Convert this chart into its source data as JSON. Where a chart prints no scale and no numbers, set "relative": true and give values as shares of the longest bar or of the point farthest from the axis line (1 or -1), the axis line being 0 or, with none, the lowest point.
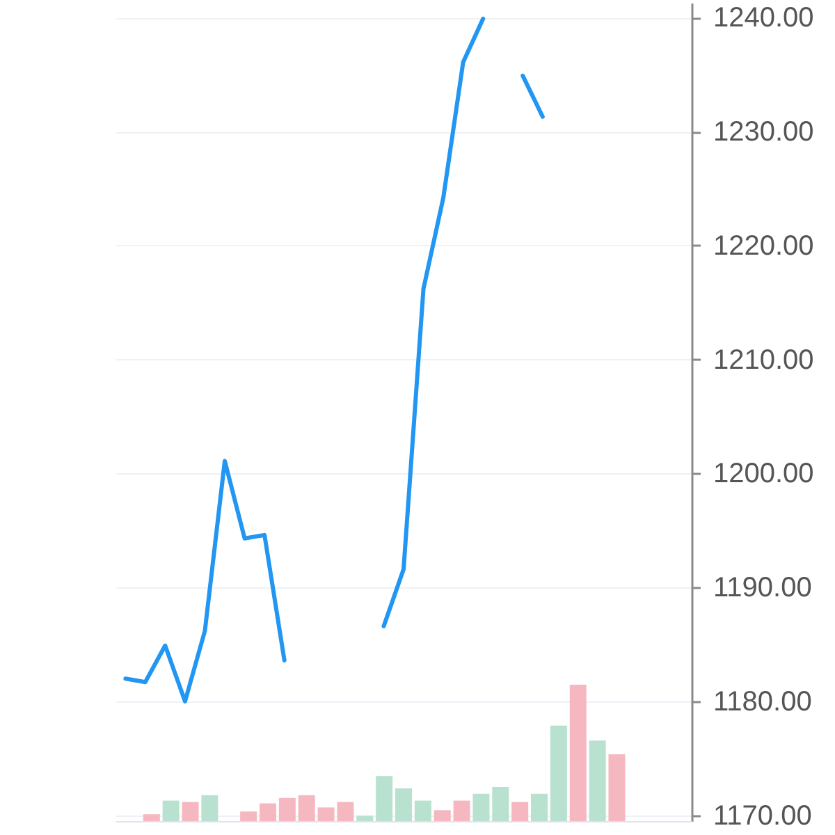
{
  "chart_data": [
    {
      "type": "line",
      "categories": [
        null,
        null,
        null,
        null,
        null,
        null,
        null,
        null,
        null,
        null,
        null,
        null,
        null,
        null,
        null,
        null,
        null,
        null,
        null,
        null,
        null,
        null,
        null,
        null,
        null,
        null,
        null,
        null,
        null
      ],
      "series": [
        {
          "color": "#2196f3",
          "values": [
            1182.0,
            1181.7,
            1184.9,
            1180.0,
            1186.2,
            1201.1,
            1194.3,
            1194.6,
            1183.6,
            null,
            null,
            null,
            null,
            1186.6,
            1191.6,
            1216.2,
            1224.2,
            1236.1,
            1239.9,
            null,
            1234.9,
            1231.3,
            null,
            null,
            null,
            null,
            null,
            null,
            null
          ]
        }
      ],
      "ylim": [
        1169.5,
        1241.3
      ],
      "yticks": [
        {
          "value": 1170,
          "label": "1170.00"
        },
        {
          "value": 1180,
          "label": "1180.00"
        },
        {
          "value": 1190,
          "label": "1190.00"
        },
        {
          "value": 1200,
          "label": "1200.00"
        },
        {
          "value": 1210,
          "label": "1210.00"
        },
        {
          "value": 1220,
          "label": "1220.00"
        },
        {
          "value": 1230,
          "label": "1230.00"
        },
        {
          "value": 1240,
          "label": "1240.00"
        }
      ],
      "grid": "y",
      "tick_labels": "y"
    },
    {
      "type": "bar",
      "relative": true,
      "categories": [
        null,
        null,
        null,
        null,
        null,
        null,
        null,
        null,
        null,
        null,
        null,
        null,
        null,
        null,
        null,
        null,
        null,
        null,
        null,
        null,
        null,
        null,
        null,
        null,
        null,
        null,
        null,
        null,
        null
      ],
      "values": [
        null,
        0.05,
        0.15,
        0.14,
        0.19,
        null,
        0.07,
        0.13,
        0.17,
        0.19,
        0.1,
        0.14,
        0.04,
        0.33,
        0.24,
        0.15,
        0.08,
        0.15,
        0.2,
        0.25,
        0.14,
        0.2,
        0.7,
        1,
        0.59,
        0.49,
        null,
        null,
        null
      ],
      "colors": [
        null,
        "#f6b8c0",
        "#b8e2cf",
        "#f6b8c0",
        "#b8e2cf",
        null,
        "#f6b8c0",
        "#f6b8c0",
        "#f6b8c0",
        "#f6b8c0",
        "#f6b8c0",
        "#f6b8c0",
        "#b8e2cf",
        "#b8e2cf",
        "#b8e2cf",
        "#b8e2cf",
        "#f6b8c0",
        "#f6b8c0",
        "#b8e2cf",
        "#b8e2cf",
        "#f6b8c0",
        "#b8e2cf",
        "#b8e2cf",
        "#f6b8c0",
        "#b8e2cf",
        "#f6b8c0",
        null,
        null,
        null
      ]
    }
  ]
}
